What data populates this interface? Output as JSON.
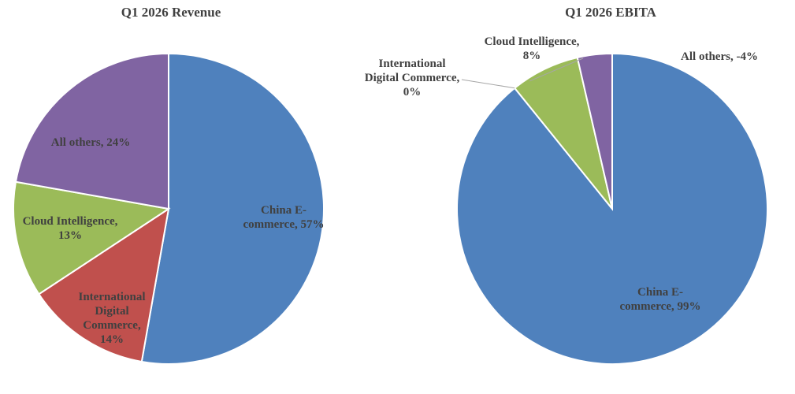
{
  "chart_data": [
    {
      "type": "pie",
      "title": "Q1 2026 Revenue",
      "slices": [
        {
          "name": "China E-commerce",
          "value": 57,
          "label": "China E-\ncommerce, 57%",
          "color": "#4f81bd"
        },
        {
          "name": "International Digital Commerce",
          "value": 14,
          "label": "International\nDigital\nCommerce,\n14%",
          "color": "#c0504d"
        },
        {
          "name": "Cloud Intelligence",
          "value": 13,
          "label": "Cloud Intelligence,\n13%",
          "color": "#9bbb59"
        },
        {
          "name": "All others",
          "value": 24,
          "label": "All others, 24%",
          "color": "#8064a2"
        }
      ]
    },
    {
      "type": "pie",
      "title": "Q1 2026 EBITA",
      "slices": [
        {
          "name": "China E-commerce",
          "value": 99,
          "label": "China E-\ncommerce, 99%",
          "color": "#4f81bd"
        },
        {
          "name": "International Digital Commerce",
          "value": 0,
          "label": "International\nDigital Commerce,\n0%",
          "color": "#c0504d"
        },
        {
          "name": "Cloud Intelligence",
          "value": 8,
          "label": "Cloud Intelligence,\n8%",
          "color": "#9bbb59"
        },
        {
          "name": "All others",
          "value": -4,
          "label": "All others, -4%",
          "color": "#8064a2"
        }
      ]
    }
  ]
}
